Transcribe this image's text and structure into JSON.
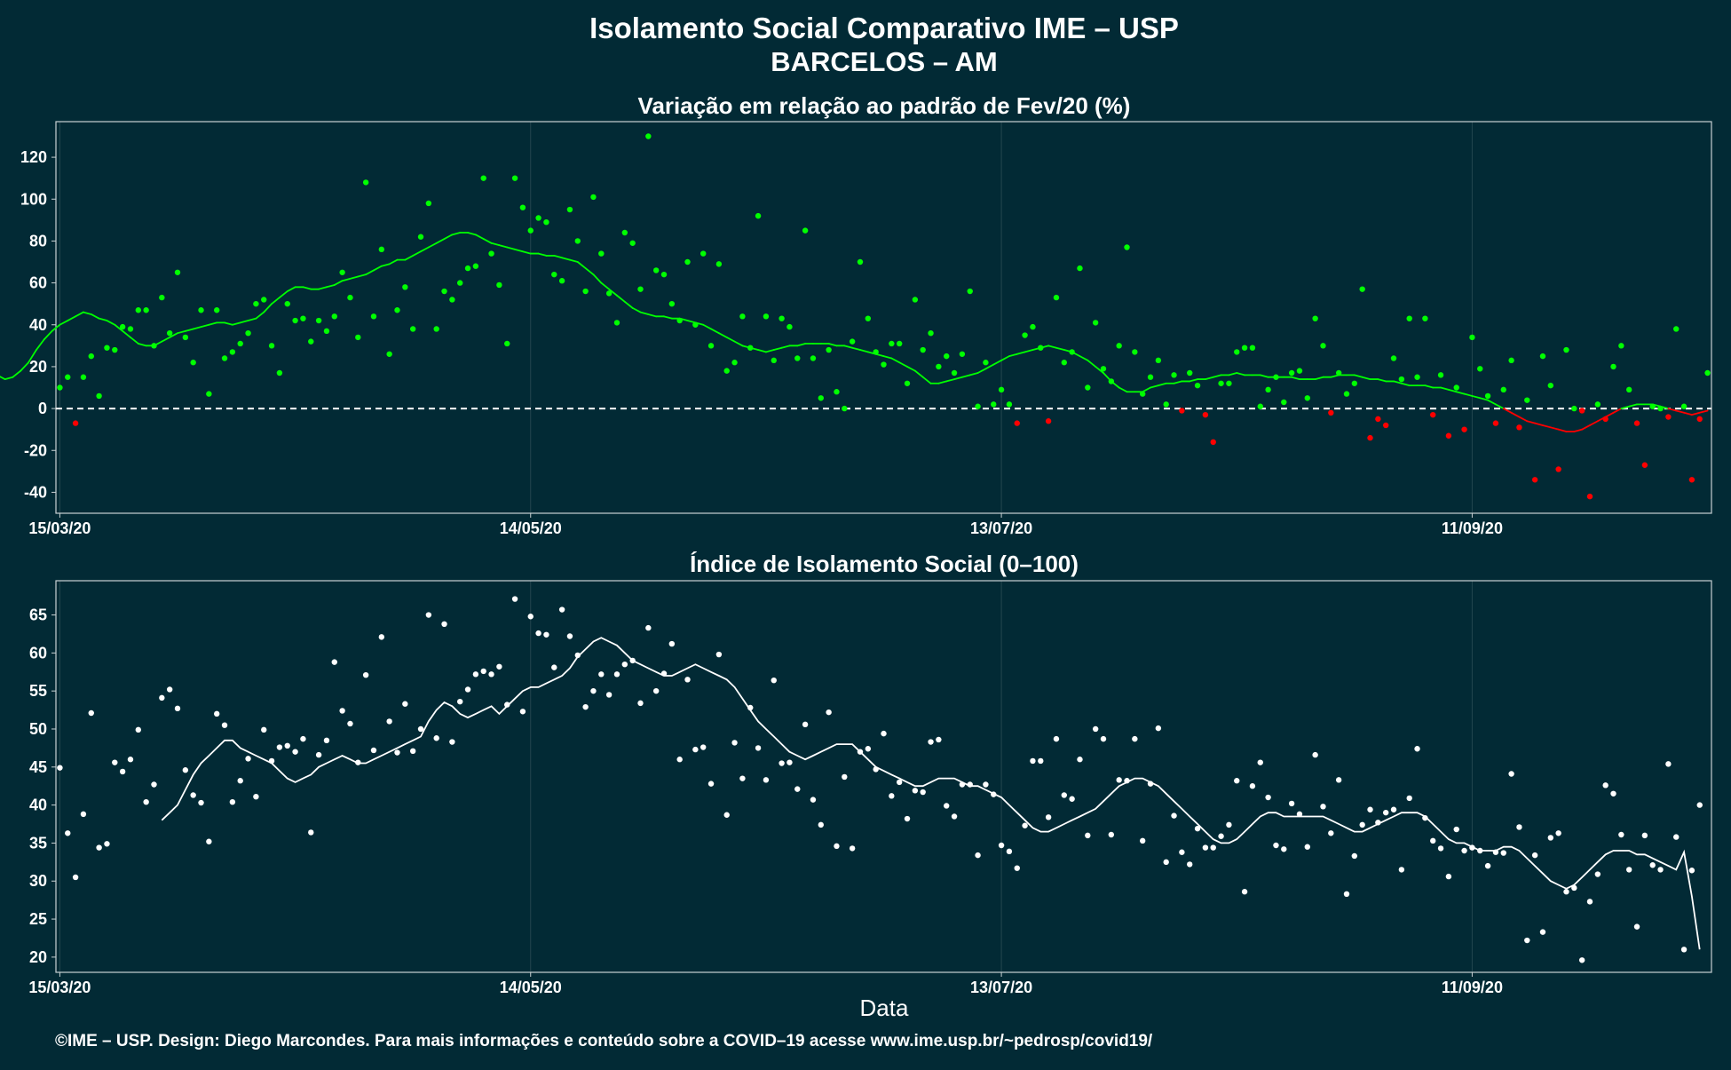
{
  "header": {
    "title": "Isolamento Social Comparativo IME – USP",
    "subtitle": "BARCELOS – AM"
  },
  "footer": {
    "x_axis_label": "Data",
    "credit": "©IME – USP. Design: Diego Marcondes. Para mais informações e conteúdo sobre a COVID–19 acesse www.ime.usp.br/~pedrosp/covid19/"
  },
  "colors": {
    "background": "#022a35",
    "positive": "#00ff00",
    "negative": "#ff0000",
    "index": "#ffffff",
    "zero_line": "#ffffff"
  },
  "chart_data": [
    {
      "type": "scatter",
      "title": "Variação em relação ao padrão de Fev/20 (%)",
      "xlabel": "",
      "ylabel": "",
      "x_start": "15/03/20",
      "x_ticks": [
        "15/03/20",
        "14/05/20",
        "13/07/20",
        "11/09/20"
      ],
      "ylim": [
        -50,
        137
      ],
      "y_ticks": [
        -40,
        -20,
        0,
        20,
        40,
        60,
        80,
        100,
        120
      ],
      "reference_line": 0,
      "points": [
        10,
        15,
        -7,
        15,
        25,
        6,
        29,
        28,
        39,
        38,
        47,
        47,
        30,
        53,
        36,
        65,
        34,
        22,
        47,
        7,
        47,
        24,
        27,
        31,
        36,
        50,
        52,
        30,
        17,
        50,
        42,
        43,
        32,
        42,
        37,
        44,
        65,
        53,
        34,
        108,
        44,
        76,
        26,
        47,
        58,
        38,
        82,
        98,
        38,
        56,
        52,
        60,
        67,
        68,
        110,
        74,
        59,
        31,
        110,
        96,
        85,
        91,
        89,
        64,
        61,
        95,
        80,
        56,
        101,
        74,
        55,
        41,
        84,
        79,
        57,
        130,
        66,
        64,
        50,
        42,
        70,
        40,
        74,
        30,
        69,
        18,
        22,
        44,
        29,
        92,
        44,
        23,
        43,
        39,
        24,
        85,
        24,
        5,
        28,
        8,
        0,
        32,
        70,
        43,
        27,
        21,
        31,
        31,
        12,
        52,
        28,
        36,
        20,
        25,
        17,
        26,
        56,
        1,
        22,
        2,
        9,
        2,
        -7,
        35,
        39,
        29,
        -6,
        53,
        22,
        27,
        67,
        10,
        41,
        19,
        13,
        30,
        77,
        27,
        7,
        15,
        23,
        2,
        16,
        -1,
        17,
        11,
        -3,
        -16,
        12,
        12,
        27,
        29,
        29,
        1,
        9,
        15,
        3,
        17,
        18,
        5,
        43,
        30,
        -2,
        17,
        7,
        12,
        57,
        -14,
        -5,
        -8,
        24,
        14,
        43,
        15,
        43,
        -3,
        16,
        -13,
        10,
        -10,
        34,
        19,
        6,
        -7,
        9,
        23,
        -9,
        4,
        -34,
        25,
        11,
        -29,
        28,
        0,
        -1,
        -42,
        2,
        -5,
        20,
        30,
        9,
        -7,
        -27,
        1,
        0,
        -4,
        38,
        1,
        -34,
        -5,
        17
      ],
      "moving_average": [
        17,
        18,
        16,
        14,
        15,
        18,
        22,
        28,
        33,
        37,
        40,
        42,
        44,
        46,
        45,
        43,
        42,
        40,
        37,
        34,
        31,
        30,
        30,
        32,
        34,
        36,
        37,
        38,
        39,
        40,
        41,
        41,
        40,
        41,
        42,
        43,
        46,
        50,
        53,
        56,
        58,
        58,
        57,
        57,
        58,
        59,
        61,
        62,
        63,
        64,
        66,
        68,
        69,
        71,
        71,
        73,
        75,
        77,
        79,
        81,
        83,
        84,
        84,
        83,
        81,
        79,
        78,
        77,
        76,
        75,
        74,
        74,
        73,
        73,
        72,
        71,
        70,
        67,
        64,
        60,
        57,
        54,
        51,
        48,
        46,
        45,
        44,
        44,
        43,
        43,
        42,
        41,
        40,
        38,
        36,
        34,
        32,
        30,
        29,
        28,
        27,
        28,
        29,
        30,
        30,
        31,
        31,
        31,
        31,
        30,
        30,
        29,
        28,
        27,
        26,
        25,
        24,
        22,
        20,
        18,
        15,
        12,
        12,
        13,
        14,
        15,
        16,
        17,
        19,
        21,
        23,
        25,
        26,
        27,
        28,
        29,
        30,
        29,
        28,
        27,
        25,
        23,
        20,
        17,
        13,
        10,
        8,
        8,
        8,
        10,
        11,
        12,
        12,
        13,
        13,
        14,
        14,
        15,
        16,
        16,
        17,
        16,
        16,
        16,
        15,
        15,
        15,
        15,
        14,
        14,
        14,
        15,
        15,
        16,
        16,
        16,
        15,
        14,
        14,
        13,
        13,
        12,
        11,
        11,
        11,
        10,
        10,
        9,
        8,
        7,
        6,
        5,
        4,
        2,
        0,
        -2,
        -4,
        -6,
        -7,
        -8,
        -9,
        -10,
        -11,
        -11,
        -10,
        -8,
        -6,
        -4,
        -2,
        0,
        1,
        2,
        2,
        2,
        1,
        0,
        -1,
        -2,
        -3,
        -2,
        -1
      ]
    },
    {
      "type": "scatter",
      "title": "Índice de Isolamento Social (0–100)",
      "xlabel": "Data",
      "ylabel": "",
      "x_start": "15/03/20",
      "x_ticks": [
        "15/03/20",
        "14/05/20",
        "13/07/20",
        "11/09/20"
      ],
      "ylim": [
        18,
        69.5
      ],
      "y_ticks": [
        20,
        25,
        30,
        35,
        40,
        45,
        50,
        55,
        60,
        65
      ],
      "points": [
        44.9,
        36.3,
        30.5,
        38.8,
        52.1,
        34.4,
        34.9,
        45.6,
        44.4,
        46.0,
        49.9,
        40.4,
        42.7,
        54.1,
        55.2,
        52.7,
        44.6,
        41.3,
        40.3,
        35.2,
        52.0,
        50.5,
        40.4,
        43.2,
        46.1,
        41.1,
        49.9,
        45.8,
        47.6,
        47.8,
        47.0,
        48.7,
        36.4,
        46.6,
        48.5,
        58.8,
        52.4,
        50.7,
        45.6,
        57.1,
        47.2,
        62.1,
        51.0,
        46.9,
        53.3,
        47.1,
        50.0,
        65.0,
        48.8,
        63.8,
        48.3,
        53.6,
        55.2,
        57.2,
        57.6,
        57.2,
        58.2,
        53.2,
        67.1,
        52.3,
        64.8,
        62.6,
        62.4,
        58.1,
        65.7,
        62.2,
        59.7,
        52.9,
        55.0,
        57.2,
        54.5,
        57.2,
        58.5,
        59.0,
        53.4,
        63.3,
        55.0,
        57.3,
        61.2,
        46.0,
        56.5,
        47.3,
        47.6,
        42.8,
        59.8,
        38.7,
        48.2,
        43.5,
        52.8,
        47.5,
        43.3,
        56.4,
        45.5,
        45.6,
        42.1,
        50.6,
        40.7,
        37.4,
        52.2,
        34.6,
        43.7,
        34.3,
        47.0,
        47.4,
        44.7,
        49.4,
        41.2,
        43.0,
        38.2,
        41.9,
        41.7,
        48.3,
        48.6,
        39.9,
        38.5,
        42.7,
        42.7,
        33.4,
        42.7,
        41.4,
        34.7,
        33.9,
        31.7,
        37.3,
        45.8,
        45.8,
        38.4,
        48.7,
        41.3,
        40.8,
        46.0,
        36.0,
        50.0,
        48.7,
        36.1,
        43.3,
        43.2,
        48.7,
        35.3,
        42.8,
        50.1,
        32.5,
        38.6,
        33.8,
        32.2,
        36.9,
        34.4,
        34.4,
        35.9,
        37.4,
        43.2,
        28.6,
        42.5,
        45.6,
        41.0,
        34.7,
        34.2,
        40.2,
        38.8,
        34.5,
        46.6,
        39.8,
        36.3,
        43.3,
        28.3,
        33.3,
        37.4,
        39.4,
        37.7,
        39.0,
        39.4,
        31.5,
        40.9,
        47.4,
        38.3,
        35.3,
        34.3,
        30.6,
        36.8,
        34.0,
        34.4,
        34.0,
        32.0,
        33.8,
        33.7,
        44.1,
        37.1,
        22.2,
        33.4,
        23.3,
        35.7,
        36.3,
        28.6,
        29.1,
        19.6,
        27.3,
        30.9,
        42.6,
        41.5,
        36.1,
        31.5,
        24.0,
        36.0,
        32.1,
        31.5,
        45.4,
        35.8,
        21.0,
        31.4,
        40.0
      ],
      "moving_average": [
        38.0,
        39.0,
        40.0,
        42.0,
        44.0,
        45.5,
        46.5,
        47.5,
        48.5,
        48.5,
        47.5,
        47.0,
        46.5,
        46.0,
        45.5,
        44.5,
        43.5,
        43.0,
        43.5,
        44.0,
        45.0,
        45.5,
        46.0,
        46.5,
        46.0,
        45.5,
        45.5,
        46.0,
        46.5,
        47.0,
        47.5,
        48.0,
        48.5,
        49.0,
        51.0,
        52.5,
        53.5,
        53.0,
        52.0,
        51.5,
        52.0,
        52.5,
        53.0,
        52.0,
        53.0,
        54.0,
        55.0,
        55.5,
        55.5,
        56.0,
        56.5,
        57.0,
        58.0,
        59.5,
        60.5,
        61.5,
        62.0,
        61.5,
        61.0,
        60.0,
        59.0,
        58.5,
        58.0,
        57.5,
        57.0,
        57.0,
        57.5,
        58.0,
        58.5,
        58.0,
        57.5,
        57.0,
        56.5,
        55.5,
        54.0,
        52.5,
        51.0,
        50.0,
        49.0,
        48.0,
        47.0,
        46.5,
        46.0,
        46.5,
        47.0,
        47.5,
        48.0,
        48.0,
        48.0,
        47.0,
        46.0,
        45.0,
        44.5,
        44.0,
        43.5,
        43.0,
        42.5,
        42.5,
        43.0,
        43.5,
        43.5,
        43.5,
        43.0,
        42.5,
        42.5,
        42.0,
        41.5,
        41.0,
        40.0,
        39.0,
        38.0,
        37.0,
        36.5,
        36.5,
        37.0,
        37.5,
        38.0,
        38.5,
        39.0,
        39.5,
        40.5,
        41.5,
        42.5,
        43.0,
        43.5,
        43.5,
        43.0,
        42.5,
        41.5,
        40.5,
        39.5,
        38.5,
        37.5,
        36.5,
        35.5,
        35.0,
        35.0,
        35.5,
        36.5,
        37.5,
        38.5,
        39.0,
        39.0,
        38.5,
        38.5,
        38.5,
        38.5,
        38.5,
        38.5,
        38.0,
        37.5,
        37.0,
        36.5,
        36.5,
        37.0,
        37.5,
        38.0,
        38.5,
        39.0,
        39.0,
        39.0,
        38.5,
        37.5,
        36.5,
        35.5,
        35.0,
        35.0,
        34.5,
        34.0,
        34.0,
        34.0,
        34.5,
        34.5,
        34.0,
        33.0,
        32.0,
        31.0,
        30.0,
        29.5,
        29.0,
        29.5,
        30.5,
        31.5,
        32.5,
        33.5,
        34.0,
        34.0,
        34.0,
        33.5,
        33.5,
        33.0,
        32.5,
        32.0,
        31.5,
        33.8,
        28.0,
        21.0
      ]
    }
  ]
}
